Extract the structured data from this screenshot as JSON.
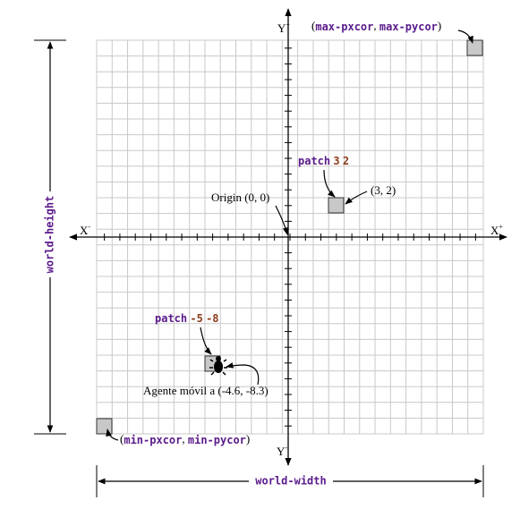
{
  "axes": {
    "y_top": [
      "Y",
      "+"
    ],
    "y_bottom": [
      "Y",
      "-"
    ],
    "x_left": [
      "X",
      "-"
    ],
    "x_right": [
      "X",
      "+"
    ]
  },
  "labels": {
    "max_corner": [
      "(",
      "max-pxcor",
      ", ",
      "max-pycor",
      ")"
    ],
    "min_corner": [
      "(",
      "min-pxcor",
      ", ",
      "min-pycor",
      ")"
    ],
    "patch_a": [
      "patch",
      "3",
      "2"
    ],
    "patch_a_coords": "(3, 2)",
    "origin": "Origin (0, 0)",
    "patch_b": [
      "patch",
      "-5",
      "-8"
    ],
    "turtle": "Agente móvil a (-4.6, -8.3)",
    "world_height": "world-height",
    "world_width": "world-width"
  }
}
